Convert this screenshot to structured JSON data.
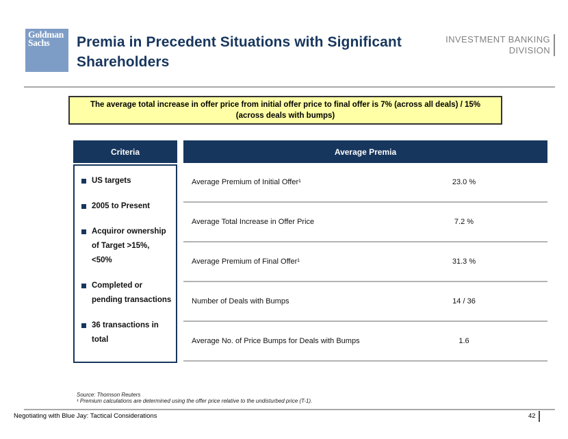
{
  "header": {
    "logo": {
      "line1": "Goldman",
      "line2": "Sachs"
    },
    "title": "Premia in Precedent Situations with Significant Shareholders",
    "division": {
      "line1": "INVESTMENT BANKING",
      "line2": "DIVISION"
    }
  },
  "banner": {
    "line1": "The average total increase in offer price from initial offer price to final offer is 7% (across all deals) / 15%",
    "line2": "(across deals with bumps)"
  },
  "criteria": {
    "header": "Criteria",
    "items": [
      "US targets",
      "2005 to Present",
      "Acquiror ownership of Target >15%, <50%",
      "Completed or pending transactions",
      "36 transactions in total"
    ]
  },
  "premia": {
    "header": "Average Premia",
    "rows": [
      {
        "label": "Average Premium of Initial Offer¹",
        "value": "23.0 %"
      },
      {
        "label": "Average Total Increase in Offer Price",
        "value": "7.2 %"
      },
      {
        "label": "Average Premium of Final Offer¹",
        "value": "31.3 %"
      },
      {
        "label": "Number of Deals with Bumps",
        "value": "14 / 36"
      },
      {
        "label": "Average No. of Price Bumps for Deals with Bumps",
        "value": "1.6"
      }
    ]
  },
  "footnotes": {
    "source": "Source: Thomson Reuters",
    "note": "¹ Premium calculations are determined using the offer price relative to the undisturbed price (T-1)."
  },
  "footer": {
    "title": "Negotiating with Blue Jay: Tactical Considerations",
    "page": "42"
  },
  "colors": {
    "navy": "#17365d",
    "logo_blue": "#7e9dc6",
    "banner_yellow": "#ffffa5",
    "rule_gray": "#a9a9a9",
    "division_gray": "#818181",
    "separator_gray": "#b3b3b3"
  }
}
